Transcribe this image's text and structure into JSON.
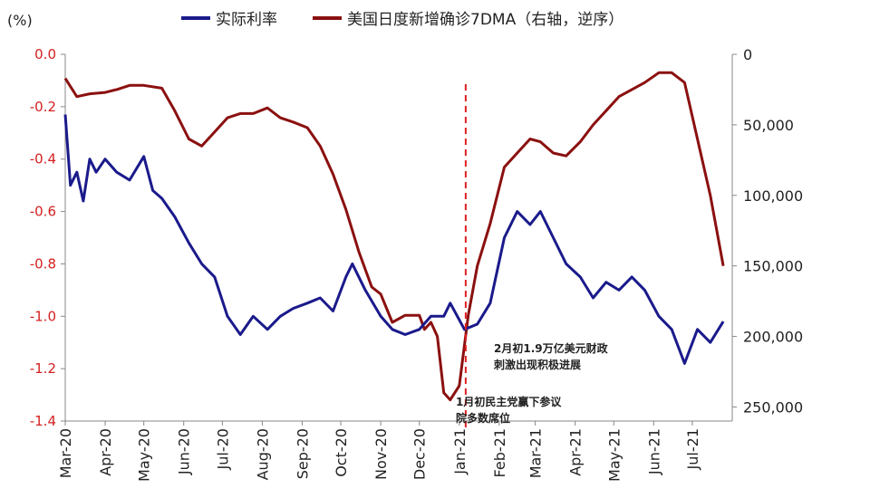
{
  "chart_data": {
    "type": "line",
    "unit_label": "(%)",
    "legend": [
      "实际利率",
      "美国日度新增确诊7DMA（右轴，逆序）"
    ],
    "x_ticks": [
      "Mar-20",
      "Apr-20",
      "May-20",
      "Jun-20",
      "Jul-20",
      "Aug-20",
      "Sep-20",
      "Oct-20",
      "Nov-20",
      "Dec-20",
      "Jan-21",
      "Feb-21",
      "Mar-21",
      "Apr-21",
      "May-21",
      "Jun-21",
      "Jul-21"
    ],
    "left_axis": {
      "ylim": [
        -1.4,
        0.0
      ],
      "ticks": [
        "0.0",
        "-0.2",
        "-0.4",
        "-0.6",
        "-0.8",
        "-1.0",
        "-1.2",
        "-1.4"
      ],
      "color": "#d42020"
    },
    "right_axis": {
      "ylim": [
        0,
        260000
      ],
      "inverted": true,
      "ticks": [
        "0",
        "50,000",
        "100,000",
        "150,000",
        "200,000",
        "250,000"
      ]
    },
    "colors": {
      "real_rate": "#1a1a8c",
      "cases": "#8b1010",
      "marker": "#e02020"
    },
    "series": [
      {
        "name": "实际利率",
        "axis": "left",
        "x": [
          "2020-03-01",
          "2020-03-05",
          "2020-03-10",
          "2020-03-15",
          "2020-03-20",
          "2020-03-25",
          "2020-04-01",
          "2020-04-10",
          "2020-04-20",
          "2020-05-01",
          "2020-05-08",
          "2020-05-15",
          "2020-05-25",
          "2020-06-05",
          "2020-06-15",
          "2020-06-25",
          "2020-07-05",
          "2020-07-15",
          "2020-07-25",
          "2020-08-05",
          "2020-08-15",
          "2020-08-25",
          "2020-09-05",
          "2020-09-15",
          "2020-09-25",
          "2020-10-05",
          "2020-10-10",
          "2020-10-20",
          "2020-11-01",
          "2020-11-10",
          "2020-11-20",
          "2020-12-01",
          "2020-12-10",
          "2020-12-20",
          "2020-12-25",
          "2021-01-05",
          "2021-01-15",
          "2021-01-25",
          "2021-02-05",
          "2021-02-15",
          "2021-02-25",
          "2021-03-05",
          "2021-03-15",
          "2021-03-25",
          "2021-04-05",
          "2021-04-15",
          "2021-04-25",
          "2021-05-05",
          "2021-05-15",
          "2021-05-25",
          "2021-06-05",
          "2021-06-15",
          "2021-06-25",
          "2021-07-05",
          "2021-07-15",
          "2021-07-25"
        ],
        "values": [
          -0.23,
          -0.5,
          -0.45,
          -0.56,
          -0.4,
          -0.45,
          -0.4,
          -0.45,
          -0.48,
          -0.39,
          -0.52,
          -0.55,
          -0.62,
          -0.72,
          -0.8,
          -0.85,
          -1.0,
          -1.07,
          -1.0,
          -1.05,
          -1.0,
          -0.97,
          -0.95,
          -0.93,
          -0.98,
          -0.85,
          -0.8,
          -0.9,
          -1.0,
          -1.05,
          -1.07,
          -1.05,
          -1.0,
          -1.0,
          -0.95,
          -1.05,
          -1.03,
          -0.95,
          -0.7,
          -0.6,
          -0.65,
          -0.6,
          -0.7,
          -0.8,
          -0.85,
          -0.93,
          -0.87,
          -0.9,
          -0.85,
          -0.9,
          -1.0,
          -1.05,
          -1.18,
          -1.05,
          -1.1,
          -1.02
        ]
      },
      {
        "name": "美国日度新增确诊7DMA（右轴，逆序）",
        "axis": "right",
        "x": [
          "2020-03-01",
          "2020-03-10",
          "2020-03-20",
          "2020-04-01",
          "2020-04-10",
          "2020-04-20",
          "2020-05-01",
          "2020-05-15",
          "2020-05-25",
          "2020-06-05",
          "2020-06-15",
          "2020-06-25",
          "2020-07-05",
          "2020-07-15",
          "2020-07-25",
          "2020-08-05",
          "2020-08-15",
          "2020-08-25",
          "2020-09-05",
          "2020-09-15",
          "2020-09-25",
          "2020-10-05",
          "2020-10-15",
          "2020-10-25",
          "2020-11-01",
          "2020-11-10",
          "2020-11-20",
          "2020-12-01",
          "2020-12-05",
          "2020-12-10",
          "2020-12-15",
          "2020-12-20",
          "2020-12-25",
          "2021-01-01",
          "2021-01-08",
          "2021-01-15",
          "2021-01-25",
          "2021-02-05",
          "2021-02-15",
          "2021-02-25",
          "2021-03-05",
          "2021-03-15",
          "2021-03-25",
          "2021-04-05",
          "2021-04-15",
          "2021-04-25",
          "2021-05-05",
          "2021-05-15",
          "2021-05-25",
          "2021-06-05",
          "2021-06-15",
          "2021-06-25",
          "2021-07-05",
          "2021-07-15",
          "2021-07-25"
        ],
        "values": [
          17000,
          30000,
          28000,
          27000,
          25000,
          22000,
          22000,
          24000,
          40000,
          60000,
          65000,
          55000,
          45000,
          42000,
          42000,
          38000,
          45000,
          48000,
          52000,
          65000,
          85000,
          110000,
          140000,
          165000,
          170000,
          190000,
          185000,
          185000,
          195000,
          190000,
          200000,
          240000,
          245000,
          235000,
          185000,
          150000,
          120000,
          80000,
          70000,
          60000,
          62000,
          70000,
          72000,
          62000,
          50000,
          40000,
          30000,
          25000,
          20000,
          13000,
          13000,
          20000,
          60000,
          100000,
          150000
        ]
      }
    ],
    "annotations": [
      {
        "text_lines": [
          "2月初1.9万亿美元财政",
          "刺激出现积极进展"
        ]
      },
      {
        "text_lines": [
          "1月初民主党赢下参议",
          "院多数席位"
        ]
      }
    ],
    "vertical_marker_date": "2021-01-06",
    "grid": false,
    "legend_position": "top"
  }
}
